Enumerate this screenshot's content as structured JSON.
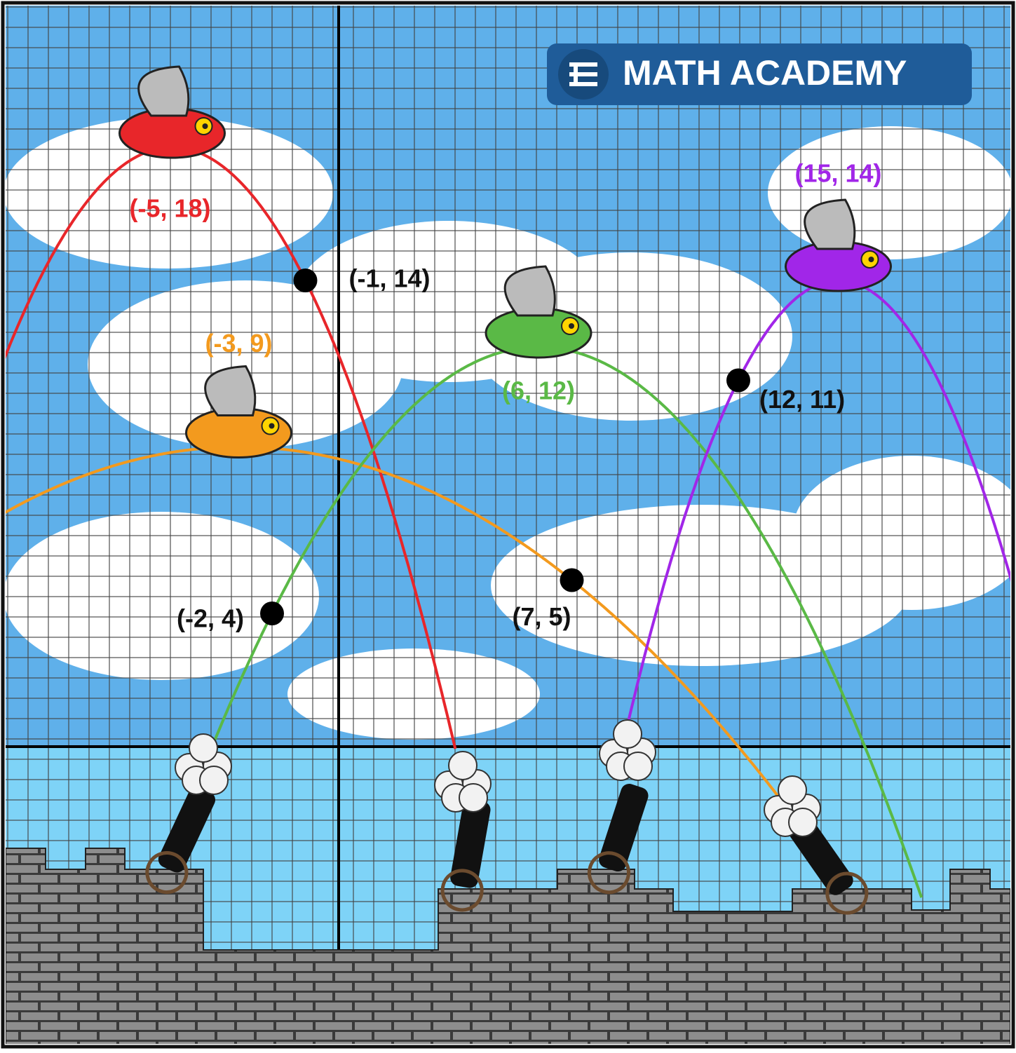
{
  "logo": {
    "text": "MATH ACADEMY"
  },
  "curves": [
    {
      "color": "#e8262a",
      "vertex": {
        "x": -5,
        "y": 18,
        "label": "(-5, 18)"
      },
      "point": {
        "x": -1,
        "y": 14,
        "label": "(-1, 14)"
      }
    },
    {
      "color": "#f39a1e",
      "vertex": {
        "x": -3,
        "y": 9,
        "label": "(-3, 9)"
      },
      "point": {
        "x": 7,
        "y": 5,
        "label": "(7, 5)"
      }
    },
    {
      "color": "#5ab946",
      "vertex": {
        "x": 6,
        "y": 12,
        "label": "(6, 12)"
      },
      "point": {
        "x": -2,
        "y": 4,
        "label": "(-2, 4)"
      }
    },
    {
      "color": "#a126e8",
      "vertex": {
        "x": 15,
        "y": 14,
        "label": "(15, 14)"
      },
      "point": {
        "x": 12,
        "y": 11,
        "label": "(12, 11)"
      }
    }
  ]
}
